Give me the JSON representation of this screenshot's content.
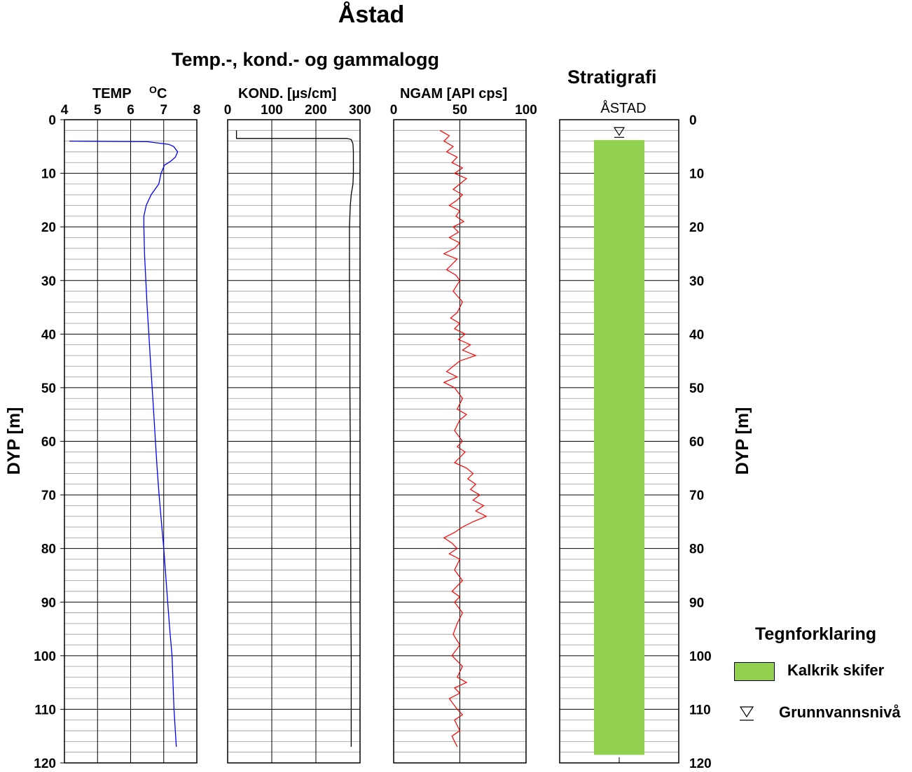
{
  "title": "Åstad",
  "subtitle": "Temp.-, kond.- og gammalogg",
  "stratigraphy_title": "Stratigrafi",
  "y_axis_label": "DYP  [m]",
  "legend": {
    "title": "Tegnforklaring",
    "items": [
      {
        "label": "Kalkrik skifer",
        "color": "#92d050"
      },
      {
        "label": "Grunnvannsnivå",
        "icon": "groundwater-level-triangle-icon"
      }
    ]
  },
  "chart_data": [
    {
      "type": "line",
      "title": "TEMP  OC",
      "xlabel": "TEMP  OC",
      "ylabel": "DYP  [m]",
      "xlim": [
        4,
        8
      ],
      "ylim": [
        0,
        120
      ],
      "y_inverted": true,
      "xticks": [
        4,
        5,
        6,
        7,
        8
      ],
      "yticks": [
        0,
        10,
        20,
        30,
        40,
        50,
        60,
        70,
        80,
        90,
        100,
        110,
        120
      ],
      "grid": true,
      "color": "#0000ff",
      "series": [
        {
          "x": [
            4.15,
            6.5,
            7.15,
            7.3,
            7.42,
            7.35,
            7.2,
            7.02,
            6.92,
            6.85,
            6.62,
            6.47,
            6.4,
            6.4,
            6.42,
            6.46,
            6.5,
            6.55,
            6.6,
            6.65,
            6.7,
            6.75,
            6.8,
            6.86,
            6.93,
            7.0,
            7.06,
            7.12,
            7.18,
            7.25,
            7.31,
            7.38
          ],
          "y": [
            4,
            4.1,
            4.6,
            5.0,
            6.0,
            7.0,
            7.8,
            8.5,
            10,
            12,
            14,
            16,
            18,
            20,
            25,
            30,
            35,
            40,
            45,
            50,
            55,
            60,
            65,
            70,
            75,
            80,
            85,
            90,
            95,
            100,
            110,
            117
          ]
        }
      ]
    },
    {
      "type": "line",
      "title": "KOND. [µs/cm]",
      "xlabel": "KOND. [µs/cm]",
      "xlim": [
        0,
        300
      ],
      "ylim": [
        0,
        120
      ],
      "y_inverted": true,
      "xticks": [
        0,
        100,
        200,
        300
      ],
      "grid": true,
      "color": "#000000",
      "series": [
        {
          "x": [
            20,
            20,
            270,
            280,
            284,
            285,
            285,
            284,
            280,
            278,
            276,
            276,
            277,
            277,
            278,
            278,
            279,
            279,
            280,
            280
          ],
          "y": [
            2,
            3.5,
            3.5,
            3.7,
            4.5,
            6,
            10,
            12,
            14,
            16,
            20,
            30,
            40,
            50,
            60,
            70,
            80,
            90,
            100,
            117
          ]
        }
      ]
    },
    {
      "type": "line",
      "title": "NGAM [API cps]",
      "xlabel": "NGAM [API cps]",
      "xlim": [
        0,
        100
      ],
      "ylim": [
        0,
        120
      ],
      "y_inverted": true,
      "xticks": [
        0,
        50,
        100
      ],
      "grid": true,
      "color": "#ff0000",
      "series": [
        {
          "x": [
            35,
            42,
            38,
            45,
            40,
            48,
            44,
            52,
            46,
            55,
            50,
            45,
            52,
            48,
            42,
            50,
            47,
            53,
            45,
            49,
            42,
            50,
            46,
            38,
            48,
            44,
            40,
            47,
            50,
            45,
            52,
            48,
            43,
            50,
            46,
            54,
            49,
            58,
            52,
            62,
            50,
            45,
            40,
            48,
            38,
            46,
            52,
            48,
            55,
            50,
            46,
            52,
            48,
            54,
            50,
            46,
            55,
            60,
            56,
            62,
            58,
            65,
            60,
            68,
            62,
            70,
            60,
            52,
            46,
            38,
            44,
            48,
            42,
            50,
            46,
            52,
            48,
            44,
            50,
            46,
            52,
            48,
            45,
            50,
            44,
            52,
            48,
            55,
            46,
            50,
            42,
            48,
            52,
            46,
            50,
            44,
            48
          ],
          "y": [
            2,
            3,
            4,
            5,
            6,
            7,
            8,
            9,
            10,
            11,
            12,
            13,
            14,
            15,
            16,
            17,
            18,
            19,
            20,
            21,
            22,
            23,
            24,
            25,
            26,
            27,
            28,
            29,
            30,
            32,
            34,
            36,
            37,
            38,
            39,
            40,
            41,
            42,
            43,
            44,
            45,
            46,
            47,
            48,
            49,
            50,
            52,
            54,
            55,
            56,
            58,
            60,
            61,
            62,
            63,
            64,
            65,
            66,
            67,
            68,
            69,
            70,
            71,
            72,
            73,
            74,
            75,
            76,
            77,
            78,
            79,
            80,
            81,
            82,
            84,
            86,
            87,
            88,
            89,
            90,
            92,
            94,
            96,
            98,
            100,
            102,
            104,
            105,
            106,
            107,
            108,
            110,
            111,
            112,
            114,
            115,
            117
          ]
        }
      ]
    },
    {
      "type": "bar",
      "title": "ÅSTAD",
      "xlabel": "ÅSTAD",
      "ylim": [
        0,
        120
      ],
      "y_inverted": true,
      "grid": true,
      "layers": [
        {
          "name": "Kalkrik skifer",
          "top": 3.8,
          "bottom": 118.5,
          "color": "#92d050"
        }
      ],
      "groundwater_level": 3.3
    }
  ]
}
